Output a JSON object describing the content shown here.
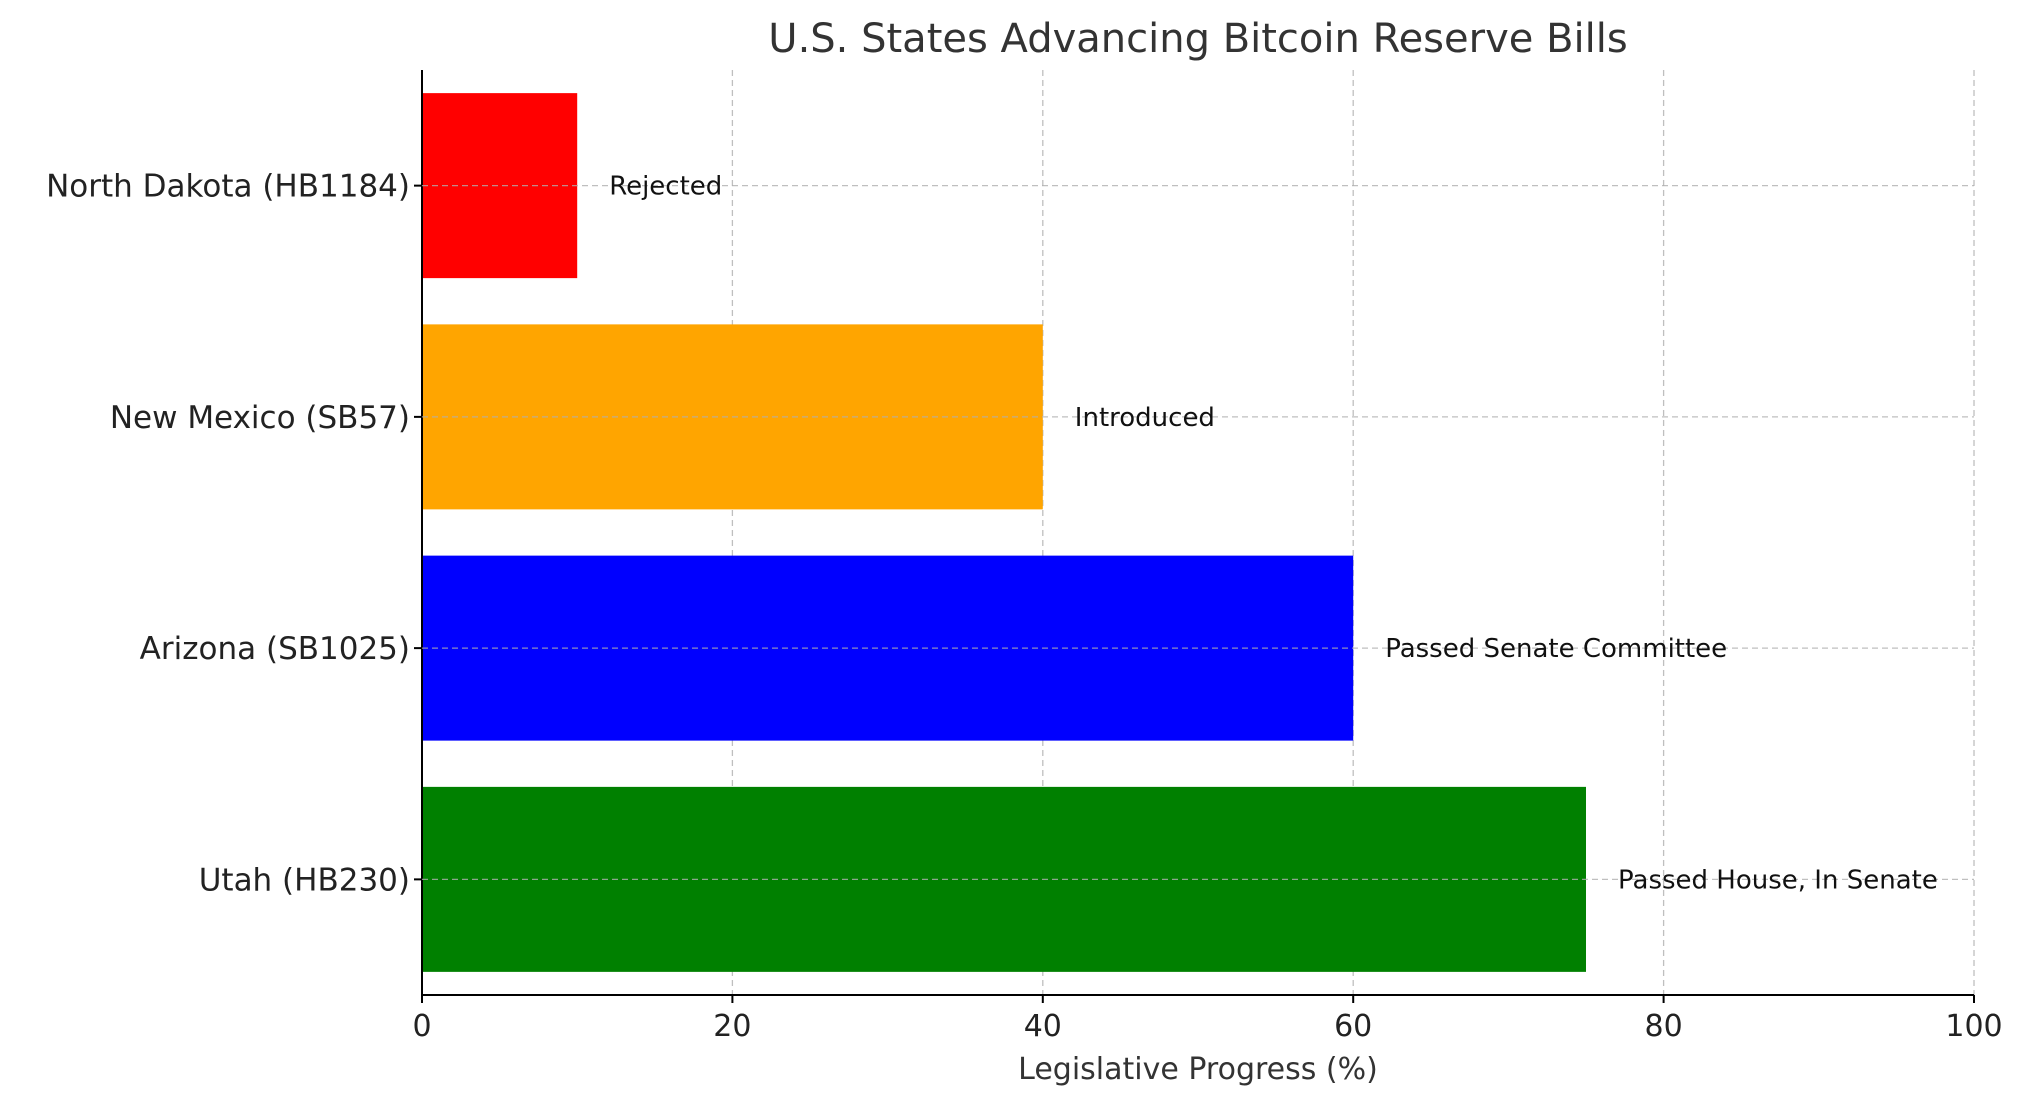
{
  "chart_data": {
    "type": "bar",
    "orientation": "horizontal",
    "title": "U.S. States Advancing Bitcoin Reserve Bills",
    "xlabel": "Legislative Progress (%)",
    "ylabel": "",
    "xlim": [
      0,
      100
    ],
    "xticks": [
      0,
      20,
      40,
      60,
      80,
      100
    ],
    "grid": true,
    "categories": [
      "North Dakota (HB1184)",
      "New Mexico (SB57)",
      "Arizona (SB1025)",
      "Utah (HB230)"
    ],
    "values": [
      10,
      40,
      60,
      75
    ],
    "data_labels": [
      "Rejected",
      "Introduced",
      "Passed Senate Committee",
      "Passed House, In Senate"
    ],
    "colors": [
      "#ff0000",
      "#ffa500",
      "#0000ff",
      "#008000"
    ]
  }
}
